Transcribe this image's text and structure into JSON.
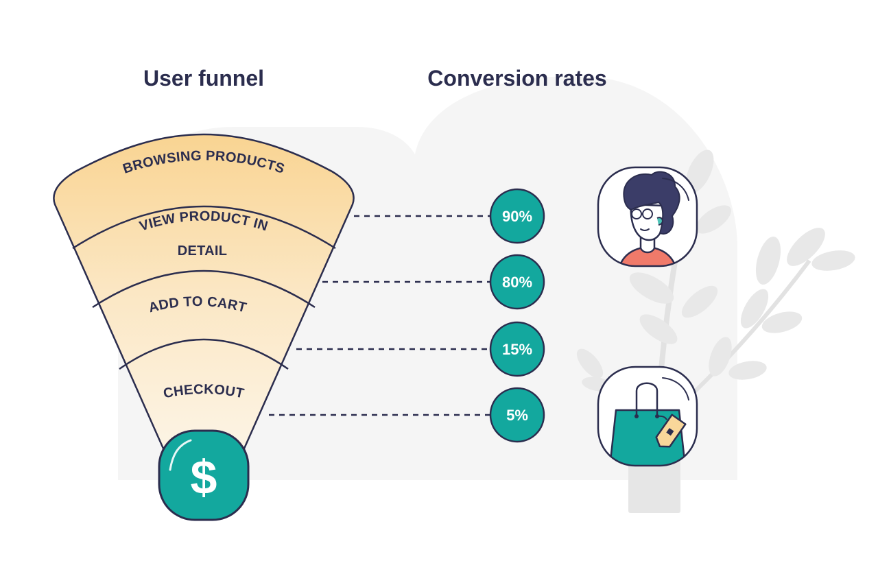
{
  "headings": {
    "funnel": "User funnel",
    "conversion": "Conversion rates"
  },
  "funnel_stages": [
    {
      "lines": [
        "BROWSING PRODUCTS"
      ]
    },
    {
      "lines": [
        "VIEW PRODUCT IN",
        "DETAIL"
      ]
    },
    {
      "lines": [
        "ADD TO CART"
      ]
    },
    {
      "lines": [
        "CHECKOUT"
      ]
    }
  ],
  "conversion_rates": [
    "90%",
    "80%",
    "15%",
    "5%"
  ],
  "badge": {
    "symbol": "$",
    "icon": "dollar-icon"
  },
  "icons": [
    "person-avatar-icon",
    "shopping-bag-icon",
    "plant-icon"
  ],
  "colors": {
    "ink": "#2b2d4e",
    "teal": "#13a89e",
    "funnel_top": "#f9d79a",
    "funnel_bottom": "#fdf6ea",
    "backdrop": "#f4f4f4",
    "plant": "#e7e7e7",
    "shirt": "#f07a6a"
  }
}
